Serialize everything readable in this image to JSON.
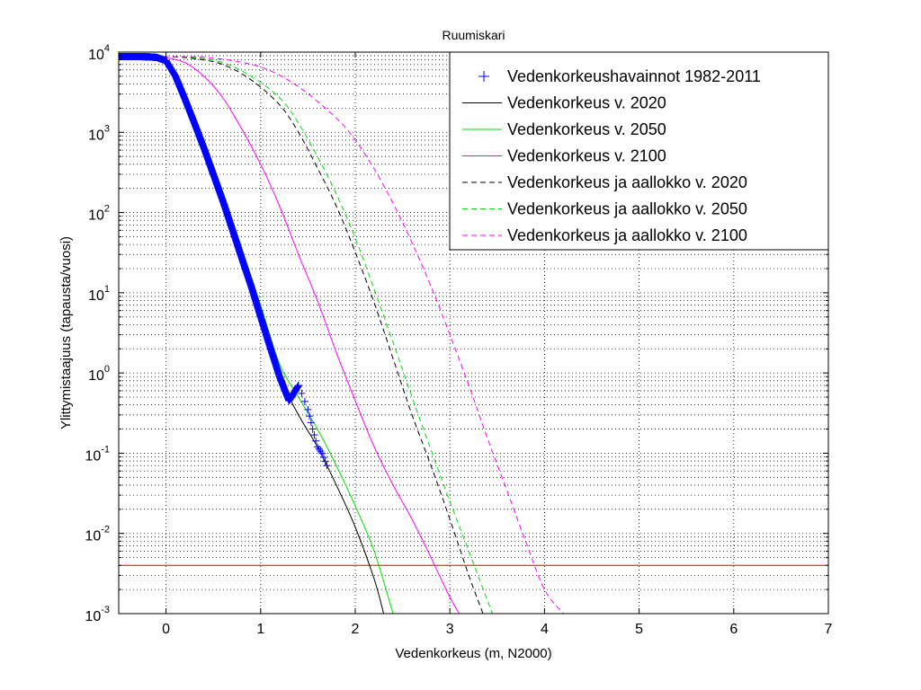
{
  "chart_data": {
    "type": "line",
    "title": "Ruumiskari",
    "xlabel": "Vedenkorkeus (m, N2000)",
    "ylabel": "Ylittymistaajuus (tapausta/vuosi)",
    "x_scale": "linear",
    "y_scale": "log",
    "xlim": [
      -0.5,
      7
    ],
    "ylim": [
      0.001,
      10000
    ],
    "x_ticks": [
      0,
      1,
      2,
      3,
      4,
      5,
      6,
      7
    ],
    "x_tick_labels": [
      "0",
      "1",
      "2",
      "3",
      "4",
      "5",
      "6",
      "7"
    ],
    "y_ticks": [
      {
        "value": 10000,
        "base": "10",
        "exp": "4"
      },
      {
        "value": 1000,
        "base": "10",
        "exp": "3"
      },
      {
        "value": 100,
        "base": "10",
        "exp": "2"
      },
      {
        "value": 10,
        "base": "10",
        "exp": "1"
      },
      {
        "value": 1,
        "base": "10",
        "exp": "0"
      },
      {
        "value": 0.1,
        "base": "10",
        "exp": "-1"
      },
      {
        "value": 0.01,
        "base": "10",
        "exp": "-2"
      },
      {
        "value": 0.001,
        "base": "10",
        "exp": "-3"
      }
    ],
    "grid": true,
    "legend_position": "top-right",
    "reference_line": {
      "y": 0.004,
      "color": "#ff0000"
    },
    "series": [
      {
        "name": "Vedenkorkeushavainnot 1982-2011",
        "style": "marker",
        "marker": "+",
        "color": "#0000ff",
        "x": [
          -0.5,
          -0.4,
          -0.3,
          -0.2,
          -0.1,
          0,
          0.1,
          0.2,
          0.3,
          0.4,
          0.5,
          0.6,
          0.7,
          0.8,
          0.9,
          1.0,
          1.1,
          1.2,
          1.3,
          1.4,
          1.5,
          1.55,
          1.6,
          1.65,
          1.7
        ],
        "y": [
          8800,
          8800,
          8800,
          8750,
          8600,
          7800,
          5000,
          2600,
          1300,
          640,
          300,
          140,
          62,
          27,
          12,
          5.0,
          2.1,
          0.9,
          0.45,
          0.7,
          0.35,
          0.2,
          0.12,
          0.1,
          0.07
        ]
      },
      {
        "name": "Vedenkorkeus v. 2020",
        "style": "solid",
        "color": "#000000",
        "x": [
          -0.5,
          -0.3,
          -0.1,
          0,
          0.1,
          0.2,
          0.4,
          0.6,
          0.8,
          1.0,
          1.2,
          1.4,
          1.6,
          1.8,
          2.0,
          2.2,
          2.3
        ],
        "y": [
          8800,
          8800,
          8600,
          7800,
          5000,
          2600,
          640,
          140,
          27,
          5.0,
          0.9,
          0.3,
          0.12,
          0.04,
          0.012,
          0.0027,
          0.001
        ]
      },
      {
        "name": "Vedenkorkeus v. 2050",
        "style": "solid",
        "color": "#00dd00",
        "x": [
          -0.5,
          -0.3,
          -0.1,
          0,
          0.1,
          0.2,
          0.4,
          0.6,
          0.8,
          1.0,
          1.2,
          1.4,
          1.6,
          1.8,
          2.0,
          2.2,
          2.4
        ],
        "y": [
          8800,
          8800,
          8700,
          8200,
          5800,
          3100,
          800,
          180,
          36,
          7.0,
          1.3,
          0.5,
          0.2,
          0.07,
          0.022,
          0.006,
          0.001
        ]
      },
      {
        "name": "Vedenkorkeus v. 2100",
        "style": "solid",
        "color": "#ff00ff",
        "x": [
          -0.5,
          -0.2,
          0,
          0.2,
          0.4,
          0.6,
          0.8,
          1.0,
          1.2,
          1.4,
          1.6,
          1.8,
          2.0,
          2.2,
          2.4,
          2.6,
          2.8,
          3.0,
          3.1
        ],
        "y": [
          8800,
          8800,
          8500,
          7400,
          5000,
          2700,
          1100,
          400,
          120,
          30,
          8.0,
          1.8,
          0.45,
          0.12,
          0.04,
          0.015,
          0.005,
          0.0016,
          0.001
        ]
      },
      {
        "name": "Vedenkorkeus ja aallokko v. 2020",
        "style": "dashed",
        "color": "#000000",
        "x": [
          -0.5,
          0,
          0.3,
          0.6,
          0.9,
          1.2,
          1.4,
          1.6,
          1.8,
          2.0,
          2.2,
          2.4,
          2.6,
          2.8,
          3.0,
          3.2,
          3.35
        ],
        "y": [
          8800,
          8800,
          8300,
          7000,
          4500,
          2200,
          1000,
          360,
          120,
          32,
          7.5,
          1.5,
          0.3,
          0.07,
          0.015,
          0.003,
          0.001
        ]
      },
      {
        "name": "Vedenkorkeus ja aallokko v. 2050",
        "style": "dashed",
        "color": "#00dd00",
        "x": [
          -0.5,
          0,
          0.3,
          0.6,
          0.9,
          1.2,
          1.4,
          1.6,
          1.8,
          2.0,
          2.2,
          2.4,
          2.6,
          2.8,
          3.0,
          3.2,
          3.45
        ],
        "y": [
          8800,
          8800,
          8500,
          7400,
          5000,
          2700,
          1300,
          500,
          170,
          48,
          11,
          2.4,
          0.5,
          0.11,
          0.025,
          0.006,
          0.001
        ]
      },
      {
        "name": "Vedenkorkeus ja aallokko v. 2100",
        "style": "dashed",
        "color": "#ff00ff",
        "x": [
          -0.5,
          0,
          0.5,
          1.0,
          1.4,
          1.8,
          2.0,
          2.2,
          2.4,
          2.6,
          2.8,
          3.0,
          3.2,
          3.4,
          3.6,
          3.8,
          4.0,
          4.2
        ],
        "y": [
          8800,
          8800,
          8400,
          6500,
          3700,
          1500,
          800,
          350,
          130,
          42,
          12,
          3.0,
          0.7,
          0.15,
          0.035,
          0.008,
          0.002,
          0.001
        ]
      }
    ]
  }
}
